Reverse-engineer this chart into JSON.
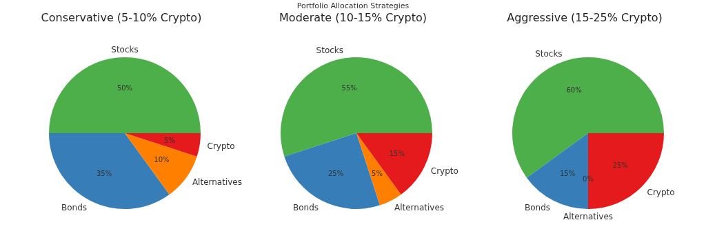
{
  "chart_data": [
    {
      "type": "pie",
      "title": "Conservative (5-10% Crypto)",
      "categories": [
        "Stocks",
        "Bonds",
        "Alternatives",
        "Crypto"
      ],
      "values": [
        50,
        35,
        10,
        5
      ],
      "colors": [
        "#4daf4a",
        "#377eb8",
        "#ff7f00",
        "#e41a1c"
      ],
      "value_labels": [
        "50%",
        "35%",
        "10%",
        "5%"
      ]
    },
    {
      "type": "pie",
      "title": "Moderate (10-15% Crypto)",
      "annotations": [
        "Portfolio Allocation Strategies"
      ],
      "categories": [
        "Stocks",
        "Bonds",
        "Alternatives",
        "Crypto"
      ],
      "values": [
        55,
        25,
        5,
        15
      ],
      "colors": [
        "#4daf4a",
        "#377eb8",
        "#ff7f00",
        "#e41a1c"
      ],
      "value_labels": [
        "55%",
        "25%",
        "5%",
        "15%"
      ]
    },
    {
      "type": "pie",
      "title": "Aggressive (15-25% Crypto)",
      "categories": [
        "Stocks",
        "Bonds",
        "Alternatives",
        "Crypto"
      ],
      "values": [
        60,
        15,
        0,
        25
      ],
      "colors": [
        "#4daf4a",
        "#377eb8",
        "#ff7f00",
        "#e41a1c"
      ],
      "value_labels": [
        "60%",
        "15%",
        "0%",
        "25%"
      ]
    }
  ]
}
